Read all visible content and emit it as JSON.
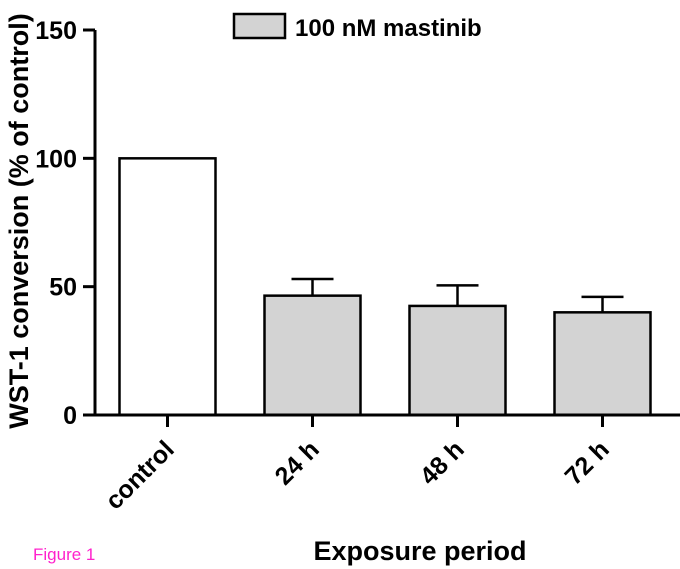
{
  "figure_label": "Figure 1",
  "chart_data": {
    "type": "bar",
    "categories": [
      "control",
      "24 h",
      "48 h",
      "72 h"
    ],
    "values": [
      100,
      46.5,
      42.5,
      40
    ],
    "errors": [
      0,
      6.5,
      8,
      6
    ],
    "fills": [
      "#ffffff",
      "#d3d3d3",
      "#d3d3d3",
      "#d3d3d3"
    ],
    "legend": {
      "label": "100 nM mastinib",
      "fill": "#d3d3d3",
      "placement": "top"
    },
    "xlabel": "Exposure period",
    "ylabel": "WST-1 conversion (% of control)",
    "yticks": [
      0,
      50,
      100,
      150
    ],
    "ylim": [
      0,
      150
    ],
    "grid": false
  }
}
